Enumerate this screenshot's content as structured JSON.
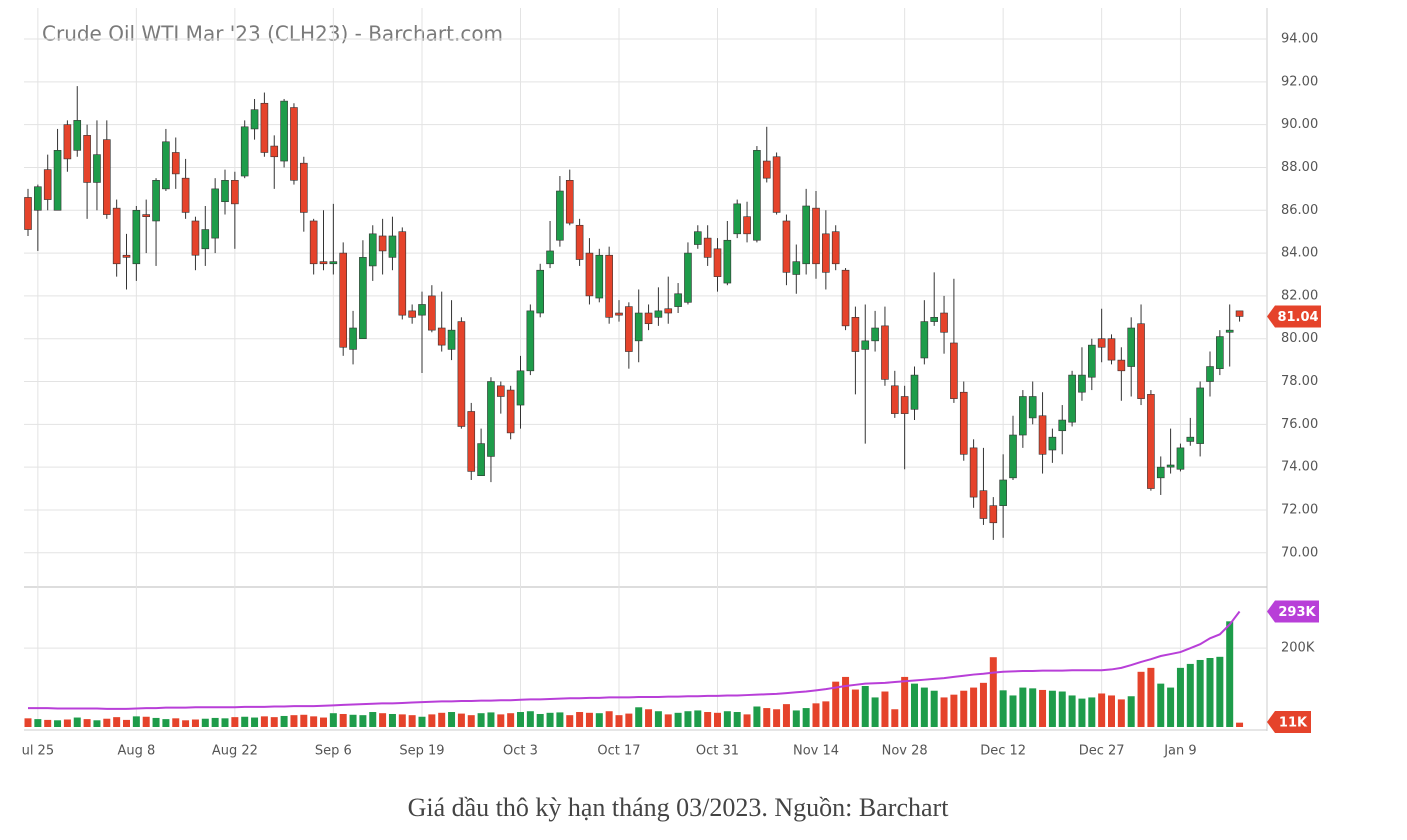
{
  "chart_data": {
    "type": "candlestick",
    "title": "Crude Oil WTI Mar '23 (CLH23) - Barchart.com",
    "up_color": "#1e9c4a",
    "down_color": "#e5432b",
    "grid": true,
    "categories": [
      null,
      "ul 25",
      null,
      null,
      null,
      null,
      null,
      null,
      null,
      null,
      null,
      "Aug 8",
      null,
      null,
      null,
      null,
      null,
      null,
      null,
      null,
      null,
      "Aug 22",
      null,
      null,
      null,
      null,
      null,
      null,
      null,
      null,
      null,
      "Sep 6",
      null,
      null,
      null,
      null,
      null,
      null,
      null,
      null,
      "Sep 19",
      null,
      null,
      null,
      null,
      null,
      null,
      null,
      null,
      null,
      "Oct 3",
      null,
      null,
      null,
      null,
      null,
      null,
      null,
      null,
      null,
      "Oct 17",
      null,
      null,
      null,
      null,
      null,
      null,
      null,
      null,
      null,
      "Oct 31",
      null,
      null,
      null,
      null,
      null,
      null,
      null,
      null,
      null,
      "Nov 14",
      null,
      null,
      null,
      null,
      null,
      null,
      null,
      null,
      "Nov 28",
      null,
      null,
      null,
      null,
      null,
      null,
      null,
      null,
      null,
      "Dec 12",
      null,
      null,
      null,
      null,
      null,
      null,
      null,
      null,
      null,
      "Dec 27",
      null,
      null,
      null,
      null,
      null,
      null,
      null,
      "Jan 9",
      null,
      null,
      null,
      null,
      null,
      null
    ],
    "open": [
      86.6,
      86,
      87.9,
      86,
      90,
      88.8,
      89.5,
      87.3,
      89.3,
      86.1,
      83.9,
      83.5,
      85.8,
      85.5,
      87,
      88.7,
      87.5,
      85.5,
      84.2,
      84.7,
      86.4,
      87.4,
      87.6,
      89.8,
      91,
      89,
      88.3,
      90.8,
      88.2,
      85.5,
      83.6,
      83.5,
      84,
      79.5,
      80,
      83.4,
      84.8,
      83.8,
      85,
      81.3,
      81.1,
      82,
      80.5,
      79.5,
      80.8,
      76.6,
      73.6,
      74.5,
      77.8,
      77.6,
      76.9,
      78.5,
      81.2,
      83.5,
      84.6,
      87.4,
      85.3,
      84,
      81.9,
      83.9,
      81.2,
      81.5,
      79.9,
      81.2,
      81,
      81.4,
      81.5,
      81.7,
      84.4,
      84.7,
      84.2,
      82.6,
      84.9,
      85.7,
      84.6,
      88.3,
      88.5,
      85.5,
      83,
      83.5,
      86.1,
      84.9,
      85,
      83.2,
      81,
      79.5,
      79.9,
      80.6,
      77.8,
      77.3,
      76.7,
      79.1,
      80.8,
      81.2,
      79.8,
      77.5,
      74.9,
      72.9,
      72.2,
      72.2,
      73.5,
      75.5,
      76.3,
      76.4,
      74.8,
      75.7,
      76.1,
      77.5,
      78.2,
      80,
      80,
      79,
      78.7,
      80.7,
      77.4,
      73.5,
      74,
      73.9,
      75.2,
      75.1,
      78,
      78.6,
      80.3,
      81.3
    ],
    "high": [
      87,
      87.2,
      88.6,
      89.8,
      90.2,
      91.8,
      90,
      90.2,
      90.2,
      86.5,
      84.9,
      86.2,
      86.5,
      87.5,
      89.8,
      89.4,
      88.4,
      85.7,
      86.2,
      87.5,
      87.9,
      87.8,
      90.2,
      91.2,
      91.5,
      89.5,
      91.2,
      91,
      88.5,
      85.6,
      86,
      86.3,
      84.5,
      81.3,
      84.6,
      85.3,
      85.6,
      85.7,
      85.2,
      81.6,
      82.2,
      82.5,
      82.2,
      81.8,
      81,
      77,
      75.8,
      78.2,
      78,
      77.8,
      79.2,
      81.6,
      83.5,
      85.5,
      87.6,
      87.9,
      85.6,
      84.7,
      84.2,
      84.3,
      81.8,
      81.7,
      82.3,
      81.6,
      82.4,
      82.9,
      82.6,
      84.5,
      85.3,
      85.3,
      84.7,
      85.5,
      86.5,
      86.4,
      89,
      89.9,
      88.7,
      85.8,
      84.4,
      87,
      86.9,
      86,
      85.3,
      83.3,
      81.5,
      81.6,
      81.3,
      81.5,
      78.5,
      77.8,
      78.7,
      81.8,
      83.1,
      82,
      82.8,
      78,
      75.3,
      74.9,
      72.6,
      74.6,
      76.4,
      77.6,
      78,
      77.5,
      75.8,
      76.9,
      78.5,
      79.6,
      80,
      81.4,
      80.2,
      79.6,
      81,
      81.6,
      77.6,
      74.5,
      75.8,
      75.1,
      76.3,
      78,
      79.4,
      80.4,
      81.6,
      81.3
    ],
    "low": [
      84.8,
      84.1,
      86,
      86,
      87.8,
      88.5,
      85.6,
      86,
      85.6,
      82.9,
      82.3,
      82.7,
      84,
      83.4,
      86.9,
      87,
      85.6,
      83.2,
      83.4,
      84,
      85.8,
      84.2,
      87.5,
      89.3,
      88.5,
      87,
      88,
      87.2,
      85,
      83,
      83.2,
      83,
      79.2,
      78.8,
      80,
      82.7,
      83,
      83.2,
      80.9,
      80.7,
      78.4,
      80.3,
      79.4,
      79,
      75.8,
      73.4,
      73.6,
      73.3,
      76.5,
      75.3,
      75.8,
      78.3,
      81,
      83.3,
      84.3,
      85.3,
      83.4,
      81.6,
      81.7,
      80.7,
      80.8,
      78.6,
      78.9,
      80.4,
      80.6,
      80.7,
      81.2,
      81.6,
      84.2,
      83.4,
      82.2,
      82.5,
      84.7,
      84.5,
      84.5,
      87.3,
      85.8,
      82.5,
      82.1,
      83,
      82.8,
      82.3,
      83.2,
      80.4,
      77.4,
      75.1,
      79.4,
      77.8,
      76.3,
      73.9,
      76.2,
      78.8,
      80.6,
      79.3,
      77,
      74.3,
      72.1,
      71.3,
      70.6,
      70.7,
      73.4,
      74.9,
      76,
      73.7,
      74.2,
      74.6,
      75.9,
      77.1,
      77.6,
      78.9,
      78.8,
      77.1,
      77.3,
      76.9,
      72.9,
      72.7,
      73.7,
      73.8,
      75,
      74.5,
      77.3,
      78.3,
      78.7,
      80.8
    ],
    "close": [
      85.1,
      87.1,
      86.5,
      88.8,
      88.4,
      90.2,
      87.3,
      88.6,
      85.8,
      83.5,
      83.8,
      86,
      85.7,
      87.4,
      89.2,
      87.7,
      85.9,
      83.9,
      85.1,
      87,
      87.4,
      86.3,
      89.9,
      90.7,
      88.7,
      88.5,
      91.1,
      87.4,
      85.9,
      83.5,
      83.5,
      83.6,
      79.6,
      80.5,
      83.8,
      84.9,
      84.1,
      84.8,
      81.1,
      81,
      81.6,
      80.4,
      79.7,
      80.4,
      75.9,
      73.8,
      75.1,
      78,
      77.3,
      75.6,
      78.5,
      81.3,
      83.2,
      84.1,
      86.9,
      85.4,
      83.7,
      82,
      83.9,
      81,
      81.1,
      79.4,
      81.2,
      80.7,
      81.3,
      81.2,
      82.1,
      84,
      85,
      83.8,
      82.9,
      84.6,
      86.3,
      84.9,
      88.8,
      87.5,
      85.9,
      83.1,
      83.6,
      86.2,
      83.5,
      83.1,
      83.5,
      80.6,
      79.4,
      79.9,
      80.5,
      78.1,
      76.5,
      76.5,
      78.3,
      80.8,
      81,
      80.3,
      77.2,
      74.6,
      72.6,
      71.6,
      71.4,
      73.4,
      75.5,
      77.3,
      77.3,
      74.6,
      75.4,
      76.2,
      78.3,
      78.3,
      79.7,
      79.6,
      79,
      78.5,
      80.5,
      77.2,
      73,
      74,
      74.1,
      74.9,
      75.4,
      77.7,
      78.7,
      80.1,
      80.4,
      81.04
    ],
    "ylim": [
      68.4,
      95.45
    ],
    "yticks": [
      {
        "value": 70,
        "label": "70.00"
      },
      {
        "value": 72,
        "label": "72.00"
      },
      {
        "value": 74,
        "label": "74.00"
      },
      {
        "value": 76,
        "label": "76.00"
      },
      {
        "value": 78,
        "label": "78.00"
      },
      {
        "value": 80,
        "label": "80.00"
      },
      {
        "value": 82,
        "label": "82.00"
      },
      {
        "value": 84,
        "label": "84.00"
      },
      {
        "value": 86,
        "label": "86.00"
      },
      {
        "value": 88,
        "label": "88.00"
      },
      {
        "value": 90,
        "label": "90.00"
      },
      {
        "value": 92,
        "label": "92.00"
      },
      {
        "value": 94,
        "label": "94.00"
      }
    ],
    "volume": {
      "values": [
        22000,
        20000,
        18000,
        17000,
        19000,
        24000,
        20000,
        17000,
        21000,
        25000,
        18000,
        27000,
        26000,
        23000,
        20000,
        22000,
        17000,
        19000,
        21000,
        23000,
        22000,
        25000,
        26000,
        24000,
        27000,
        25000,
        28000,
        30000,
        31000,
        27000,
        24000,
        35000,
        33000,
        31000,
        30000,
        38000,
        35000,
        33000,
        32000,
        30000,
        26000,
        32000,
        36000,
        38000,
        34000,
        30000,
        35000,
        37000,
        32000,
        35000,
        38000,
        40000,
        33000,
        36000,
        37000,
        30000,
        38000,
        36000,
        35000,
        40000,
        30000,
        34000,
        50000,
        45000,
        40000,
        32000,
        36000,
        40000,
        42000,
        38000,
        36000,
        40000,
        38000,
        32000,
        52000,
        48000,
        45000,
        58000,
        42000,
        48000,
        60000,
        65000,
        115000,
        127000,
        95000,
        104000,
        75000,
        90000,
        45000,
        127000,
        110000,
        100000,
        92000,
        75000,
        82000,
        92000,
        100000,
        112000,
        177000,
        93000,
        80000,
        100000,
        98000,
        94000,
        92000,
        90000,
        80000,
        72000,
        75000,
        85000,
        80000,
        70000,
        78000,
        140000,
        150000,
        110000,
        100000,
        150000,
        160000,
        170000,
        175000,
        178000,
        268000,
        11000
      ],
      "last_label": "11K"
    },
    "volume_average": {
      "color": "#b83fd8",
      "values": [
        48000,
        48000,
        48000,
        47000,
        47000,
        47000,
        47000,
        47000,
        46000,
        46000,
        46000,
        47000,
        48000,
        48000,
        49000,
        49000,
        49000,
        50000,
        50000,
        50000,
        50000,
        50000,
        51000,
        51000,
        51000,
        52000,
        52000,
        53000,
        53000,
        53000,
        54000,
        55000,
        56000,
        57000,
        58000,
        59000,
        60000,
        60000,
        61000,
        62000,
        63000,
        64000,
        65000,
        65000,
        66000,
        66000,
        67000,
        67000,
        68000,
        68000,
        69000,
        70000,
        70000,
        71000,
        72000,
        73000,
        73000,
        74000,
        74000,
        75000,
        75000,
        75000,
        76000,
        76000,
        76000,
        77000,
        77000,
        78000,
        78000,
        79000,
        79000,
        80000,
        80000,
        81000,
        82000,
        83000,
        84000,
        86000,
        88000,
        90000,
        93000,
        96000,
        100000,
        104000,
        107000,
        110000,
        111000,
        112000,
        114000,
        116000,
        118000,
        120000,
        122000,
        124000,
        127000,
        130000,
        133000,
        135000,
        138000,
        140000,
        141000,
        142000,
        142000,
        143000,
        143000,
        143000,
        144000,
        144000,
        144000,
        144000,
        146000,
        150000,
        157000,
        165000,
        172000,
        180000,
        185000,
        190000,
        200000,
        210000,
        225000,
        235000,
        260000,
        293000
      ],
      "last_label": "293K"
    },
    "volume_ylim": [
      0,
      350000
    ],
    "volume_yticks": [
      {
        "value": 200000,
        "label": "200K"
      }
    ]
  },
  "caption": "Giá dầu thô kỳ hạn tháng 03/2023. Nguồn: Barchart"
}
